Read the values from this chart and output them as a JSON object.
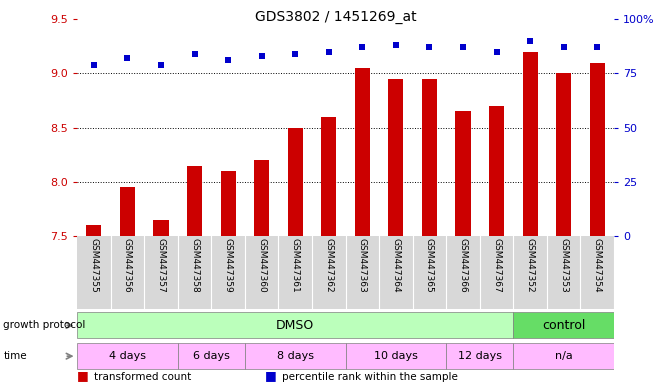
{
  "title": "GDS3802 / 1451269_at",
  "samples": [
    "GSM447355",
    "GSM447356",
    "GSM447357",
    "GSM447358",
    "GSM447359",
    "GSM447360",
    "GSM447361",
    "GSM447362",
    "GSM447363",
    "GSM447364",
    "GSM447365",
    "GSM447366",
    "GSM447367",
    "GSM447352",
    "GSM447353",
    "GSM447354"
  ],
  "transformed_counts": [
    7.6,
    7.95,
    7.65,
    8.15,
    8.1,
    8.2,
    8.5,
    8.6,
    9.05,
    8.95,
    8.95,
    8.65,
    8.7,
    9.2,
    9.0,
    9.1
  ],
  "percentile_ranks": [
    79,
    82,
    79,
    84,
    81,
    83,
    84,
    85,
    87,
    88,
    87,
    87,
    85,
    90,
    87,
    87
  ],
  "ylim_left": [
    7.5,
    9.5
  ],
  "ylim_right": [
    0,
    100
  ],
  "yticks_left": [
    7.5,
    8.0,
    8.5,
    9.0,
    9.5
  ],
  "yticks_right": [
    0,
    25,
    50,
    75,
    100
  ],
  "bar_color": "#cc0000",
  "dot_color": "#0000cc",
  "legend_bar_label": "transformed count",
  "legend_dot_label": "percentile rank within the sample",
  "left_axis_color": "#cc0000",
  "right_axis_color": "#0000cc",
  "growth_protocol_label": "growth protocol",
  "time_label": "time",
  "dmso_color": "#bbffbb",
  "control_color": "#66dd66",
  "time_color": "#ffbbff",
  "grid_lines": [
    8.0,
    8.5,
    9.0
  ]
}
